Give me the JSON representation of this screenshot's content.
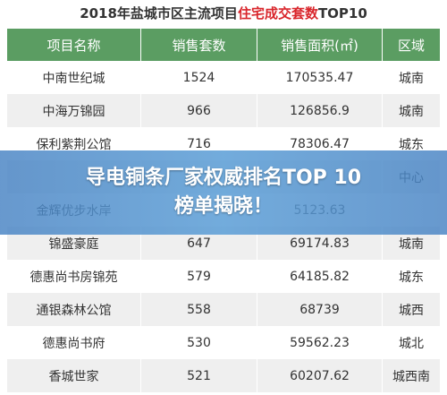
{
  "title": {
    "before": "2018年盐城市区主流项目",
    "highlight": "住宅成交套数",
    "after": "TOP10"
  },
  "table": {
    "header": [
      "项目名称",
      "销售套数",
      "销售面积(㎡)",
      "区域"
    ],
    "rows": [
      {
        "name": "中南世纪城",
        "count": "1524",
        "area": "170535.47",
        "region": "城南"
      },
      {
        "name": "中海万锦园",
        "count": "966",
        "area": "126856.9",
        "region": "城南"
      },
      {
        "name": "保利紫荆公馆",
        "count": "716",
        "area": "78306.47",
        "region": "城东"
      },
      {
        "region": "中心"
      },
      {
        "name": "金辉优步水岸",
        "area": "5123.63"
      },
      {
        "name": "锦盛豪庭",
        "count": "647",
        "area": "69174.83",
        "region": "城南"
      },
      {
        "name": "德惠尚书房锦苑",
        "count": "579",
        "area": "64185.82",
        "region": "城东"
      },
      {
        "name": "通银森林公馆",
        "count": "558",
        "area": "68739",
        "region": "城西"
      },
      {
        "name": "德惠尚书府",
        "count": "530",
        "area": "59562.23",
        "region": "城北"
      },
      {
        "name": "香城世家",
        "count": "521",
        "area": "60207.62",
        "region": "城西南"
      }
    ]
  },
  "banner": {
    "lines": [
      "导电铜条厂家权威排名TOP 10",
      "榜单揭晓！"
    ]
  }
}
